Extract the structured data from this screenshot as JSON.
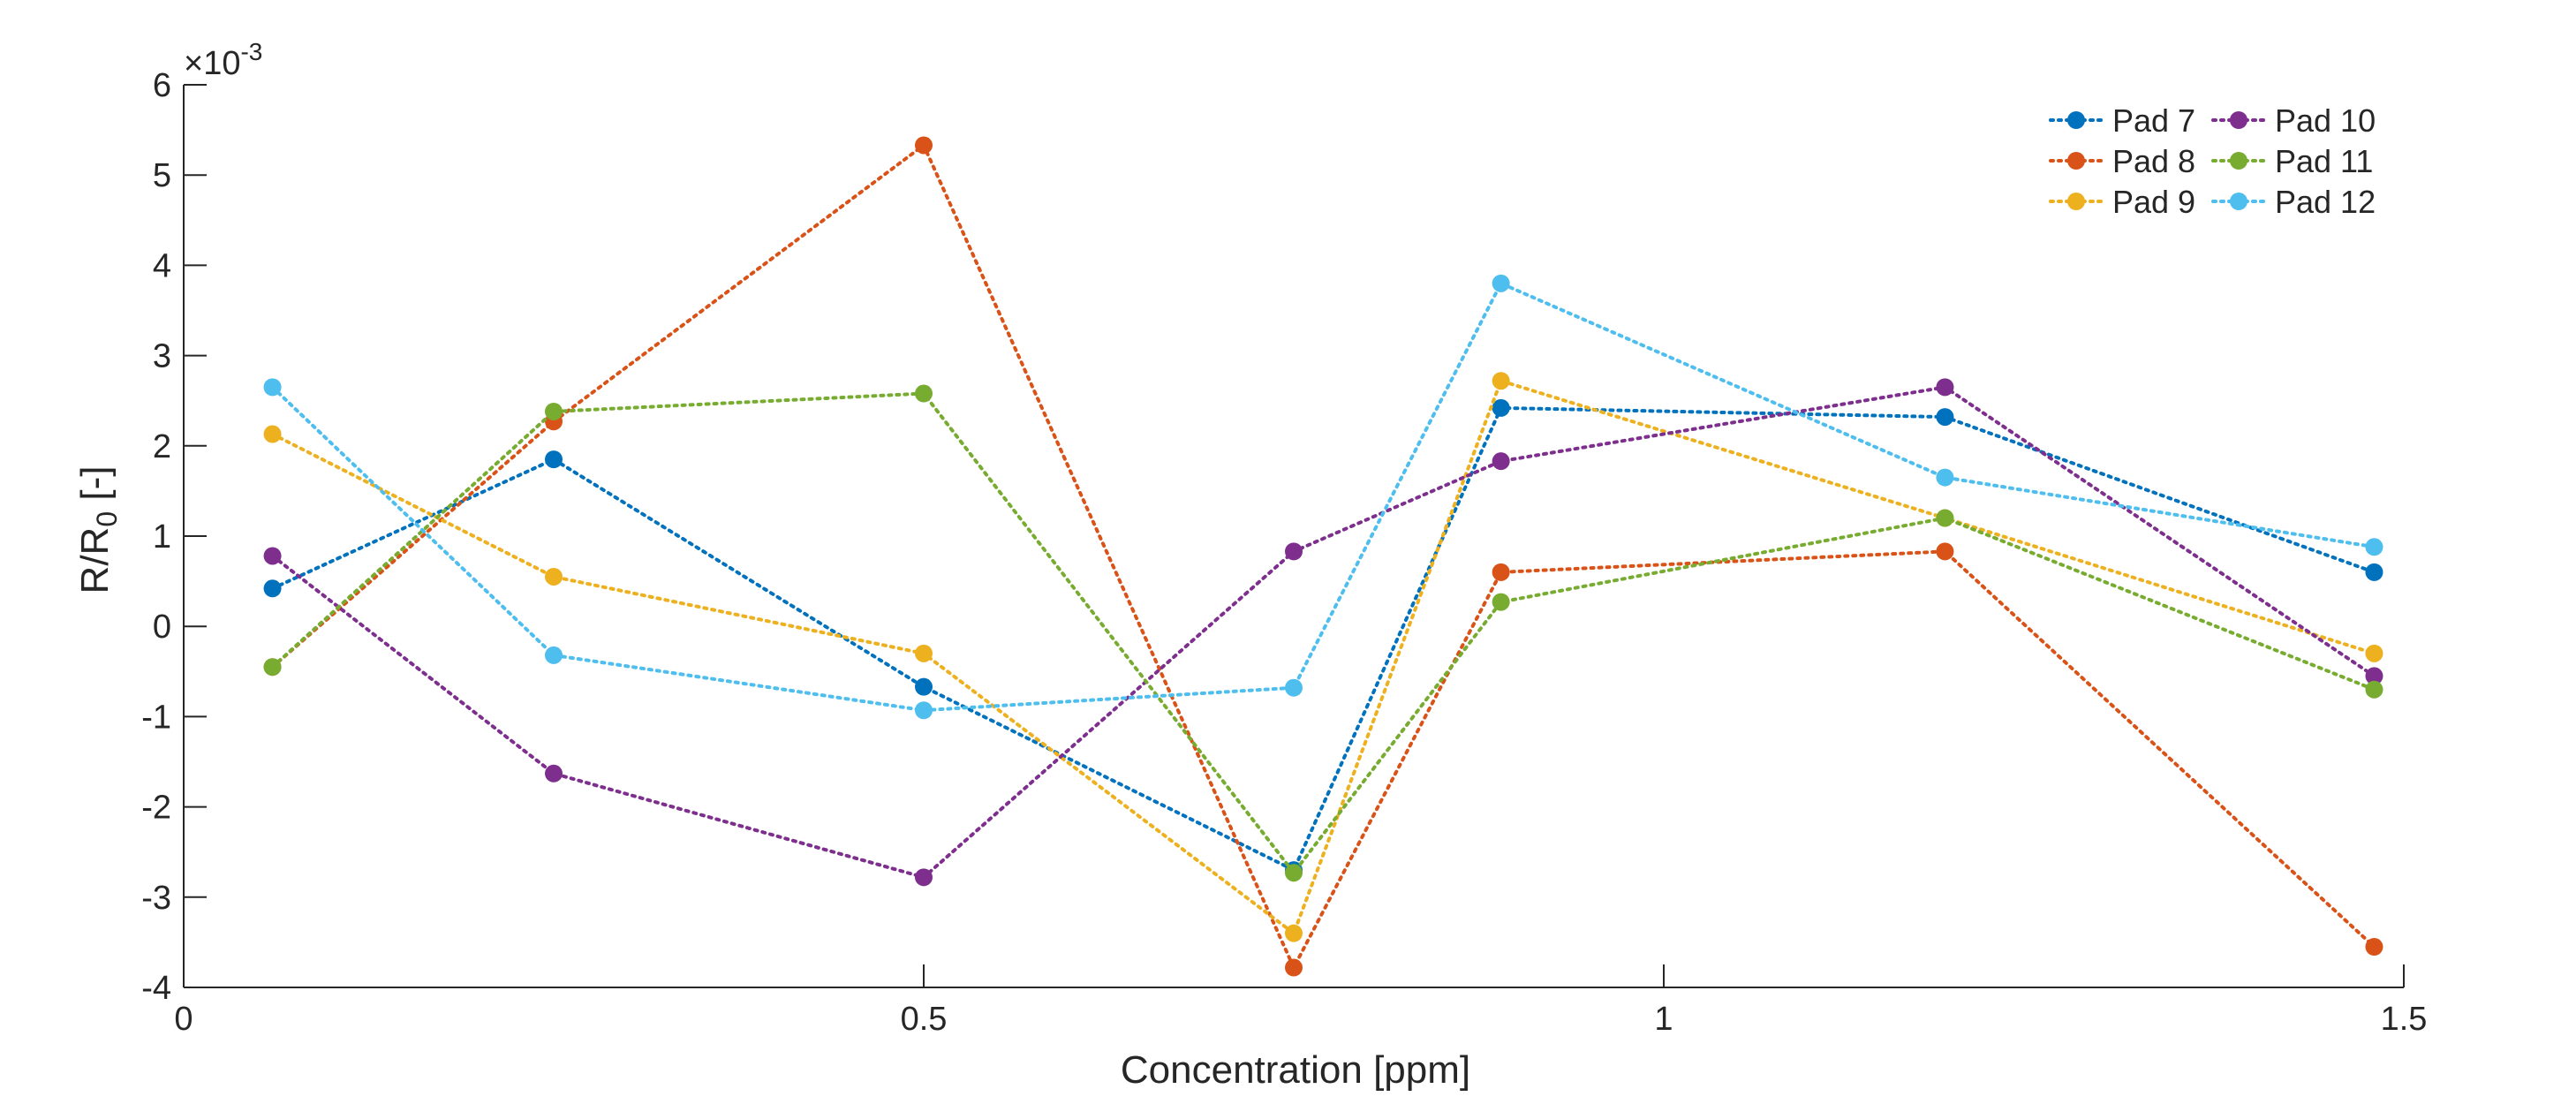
{
  "chart_data": {
    "type": "line",
    "xlabel": "Concentration [ppm]",
    "ylabel_main": "R/R",
    "ylabel_sub": "0",
    "ylabel_tail": " [-]",
    "exponent_label": "×10",
    "exponent_power": "-3",
    "xlim": [
      0,
      1.5
    ],
    "ylim": [
      -4,
      6
    ],
    "xticks": [
      0,
      0.5,
      1,
      1.5
    ],
    "xtick_labels": [
      "0",
      "0.5",
      "1",
      "1.5"
    ],
    "yticks": [
      -4,
      -3,
      -2,
      -1,
      0,
      1,
      2,
      3,
      4,
      5,
      6
    ],
    "ytick_labels": [
      "-4",
      "-3",
      "-2",
      "-1",
      "0",
      "1",
      "2",
      "3",
      "4",
      "5",
      "6"
    ],
    "y_scale": "×10^-3",
    "grid": false,
    "legend_position": "top-right",
    "line_style": "dotted",
    "x": [
      0.06,
      0.25,
      0.5,
      0.75,
      0.89,
      1.19,
      1.48
    ],
    "series": [
      {
        "name": "Pad 7",
        "color": "#0072BD",
        "values": [
          0.42,
          1.85,
          -0.67,
          -2.7,
          2.42,
          2.32,
          0.6
        ]
      },
      {
        "name": "Pad 8",
        "color": "#D95319",
        "values": [
          -0.45,
          2.27,
          5.33,
          -3.78,
          0.6,
          0.83,
          -3.55
        ]
      },
      {
        "name": "Pad 9",
        "color": "#EDB120",
        "values": [
          2.13,
          0.55,
          -0.3,
          -3.4,
          2.72,
          1.2,
          -0.3
        ]
      },
      {
        "name": "Pad 10",
        "color": "#7E2F8E",
        "values": [
          0.78,
          -1.63,
          -2.78,
          0.83,
          1.83,
          2.65,
          -0.55
        ]
      },
      {
        "name": "Pad 11",
        "color": "#77AC30",
        "values": [
          -0.45,
          2.38,
          2.58,
          -2.73,
          0.27,
          1.2,
          -0.7
        ]
      },
      {
        "name": "Pad 12",
        "color": "#4DBEEE",
        "values": [
          2.65,
          -0.32,
          -0.93,
          -0.68,
          3.8,
          1.65,
          0.88
        ]
      }
    ]
  }
}
